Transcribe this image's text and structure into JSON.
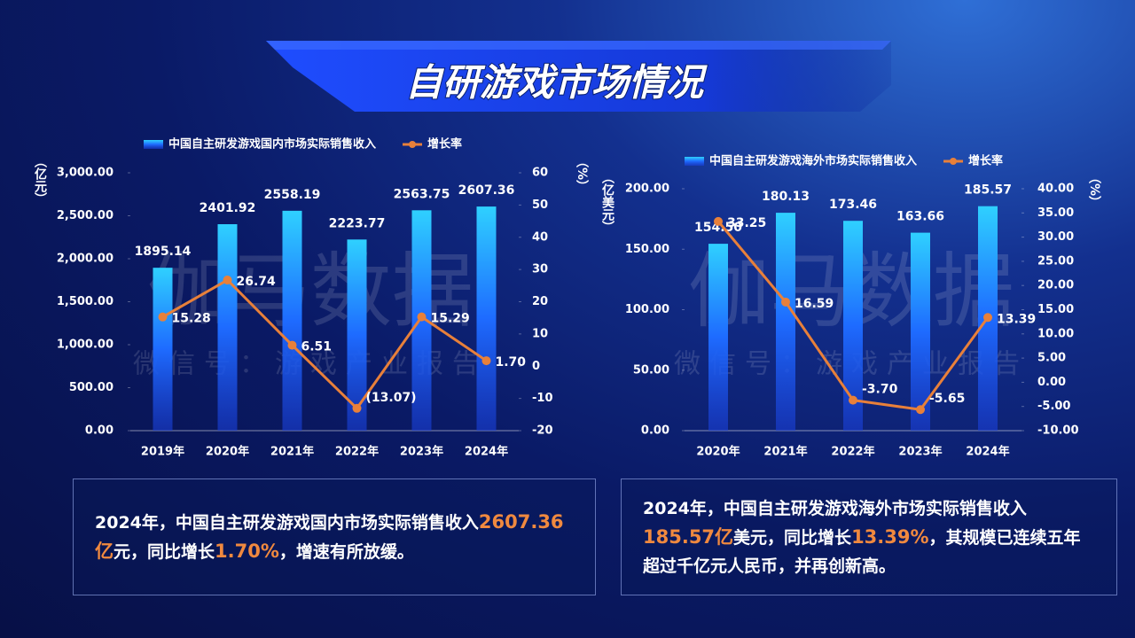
{
  "header": {
    "title": "自研游戏市场情况"
  },
  "watermark": {
    "brand": "伽马数据",
    "wechat": "微信号：游戏产业报告"
  },
  "chart_data": [
    {
      "type": "combo",
      "y_label": "（亿元）",
      "y2_label": "（%）",
      "categories": [
        "2019年",
        "2020年",
        "2021年",
        "2022年",
        "2023年",
        "2024年"
      ],
      "series": [
        {
          "name": "中国自主研发游戏国内市场实际销售收入",
          "type": "bar",
          "color": "#1e6bff",
          "values": [
            1895.14,
            2401.92,
            2558.19,
            2223.77,
            2563.75,
            2607.36
          ]
        },
        {
          "name": "增长率",
          "type": "line",
          "axis": "y2",
          "color": "#e8803a",
          "values": [
            15.28,
            26.74,
            6.51,
            -13.07,
            15.29,
            1.7
          ],
          "value_labels": [
            "15.28",
            "26.74",
            "6.51",
            "(13.07)",
            "15.29",
            "1.70"
          ]
        }
      ],
      "ylim": [
        0,
        3000
      ],
      "yticks": [
        {
          "value": 0,
          "label": "0.00"
        },
        {
          "value": 500,
          "label": "500.00"
        },
        {
          "value": 1000,
          "label": "1,000.00"
        },
        {
          "value": 1500,
          "label": "1,500.00"
        },
        {
          "value": 2000,
          "label": "2,000.00"
        },
        {
          "value": 2500,
          "label": "2,500.00"
        },
        {
          "value": 3000,
          "label": "3,000.00"
        }
      ],
      "y2lim": [
        -20,
        60
      ],
      "y2ticks": [
        -20,
        -10,
        0,
        10,
        20,
        30,
        40,
        50,
        60
      ]
    },
    {
      "type": "combo",
      "y_label": "（亿美元）",
      "y2_label": "（%）",
      "categories": [
        "2020年",
        "2021年",
        "2022年",
        "2023年",
        "2024年"
      ],
      "series": [
        {
          "name": "中国自主研发游戏海外市场实际销售收入",
          "type": "bar",
          "color": "#1e6bff",
          "values": [
            154.5,
            180.13,
            173.46,
            163.66,
            185.57
          ],
          "value_labels": [
            "154.50",
            "180.13",
            "173.46",
            "163.66",
            "185.57"
          ]
        },
        {
          "name": "增长率",
          "type": "line",
          "axis": "y2",
          "color": "#e8803a",
          "values": [
            33.25,
            16.59,
            -3.7,
            -5.65,
            13.39
          ],
          "value_labels": [
            "33.25",
            "16.59",
            "-3.70",
            "-5.65",
            "13.39"
          ]
        }
      ],
      "ylim": [
        0,
        200
      ],
      "yticks": [
        {
          "value": 0,
          "label": "0.00"
        },
        {
          "value": 50,
          "label": "50.00"
        },
        {
          "value": 100,
          "label": "100.00"
        },
        {
          "value": 150,
          "label": "150.00"
        },
        {
          "value": 200,
          "label": "200.00"
        }
      ],
      "y2lim": [
        -10,
        40
      ],
      "y2ticks": [
        {
          "value": -10,
          "label": "-10.00"
        },
        {
          "value": -5,
          "label": "-5.00"
        },
        {
          "value": 0,
          "label": "0.00"
        },
        {
          "value": 5,
          "label": "5.00"
        },
        {
          "value": 10,
          "label": "10.00"
        },
        {
          "value": 15,
          "label": "15.00"
        },
        {
          "value": 20,
          "label": "20.00"
        },
        {
          "value": 25,
          "label": "25.00"
        },
        {
          "value": 30,
          "label": "30.00"
        },
        {
          "value": 35,
          "label": "35.00"
        },
        {
          "value": 40,
          "label": "40.00"
        }
      ]
    }
  ],
  "notes": [
    {
      "parts": [
        "2024年，中国自主研发游戏国内市场实际销售收入",
        "2607.36亿",
        "元，同比增长",
        "1.70%",
        "，增速有所放缓。"
      ]
    },
    {
      "parts": [
        "2024年，中国自主研发游戏海外市场实际销售收入",
        "185.57亿",
        "美元，同比增长",
        "13.39%",
        "，其规模已连续五年超过千亿元人民币，并再创新高。"
      ]
    }
  ]
}
